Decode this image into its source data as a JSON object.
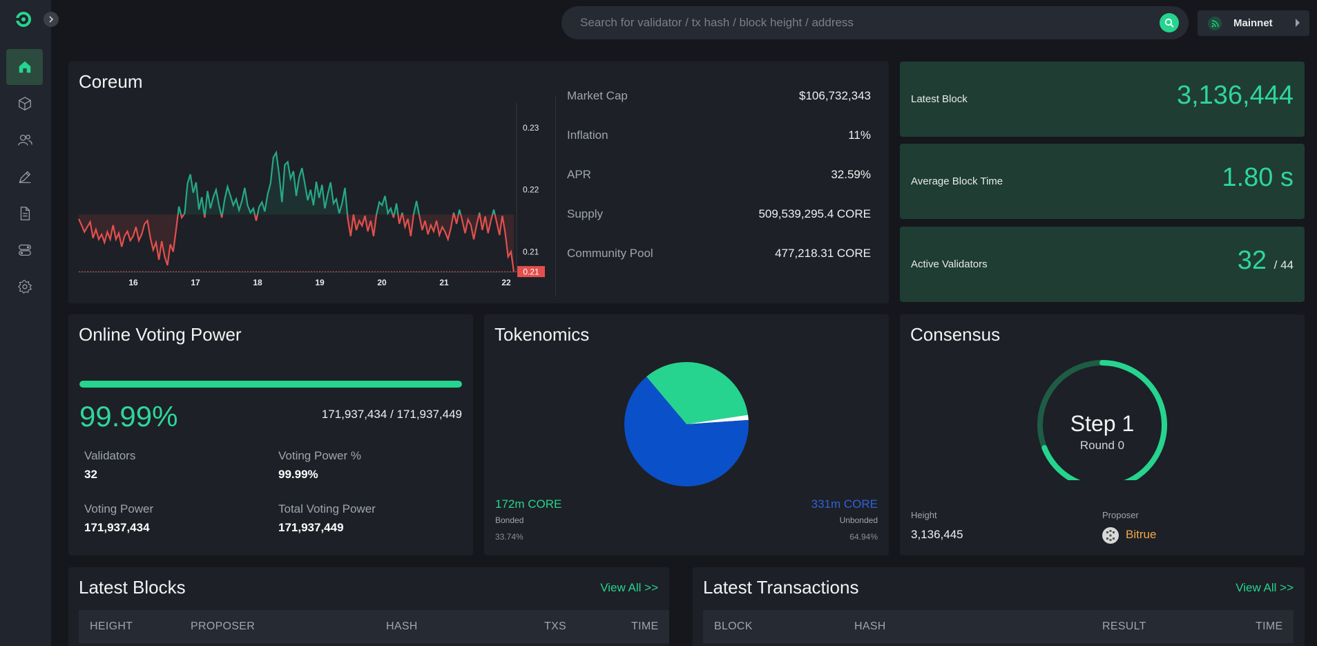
{
  "search": {
    "placeholder": "Search for validator / tx hash / block height / address"
  },
  "network": {
    "label": "Mainnet"
  },
  "sidebar": {
    "items": [
      {
        "icon": "home-icon",
        "active": true
      },
      {
        "icon": "cube-icon",
        "active": false
      },
      {
        "icon": "users-icon",
        "active": false
      },
      {
        "icon": "pen-icon",
        "active": false
      },
      {
        "icon": "document-icon",
        "active": false
      },
      {
        "icon": "toggle-icon",
        "active": false
      },
      {
        "icon": "gear-icon",
        "active": false
      }
    ]
  },
  "coreum": {
    "title": "Coreum",
    "stats": [
      {
        "label": "Market Cap",
        "value": "$106,732,343"
      },
      {
        "label": "Inflation",
        "value": "11%"
      },
      {
        "label": "APR",
        "value": "32.59%"
      },
      {
        "label": "Supply",
        "value": "509,539,295.4 CORE"
      },
      {
        "label": "Community Pool",
        "value": "477,218.31 CORE"
      }
    ]
  },
  "chart_data": {
    "type": "line",
    "x_tick_labels": [
      "16",
      "17",
      "18",
      "19",
      "20",
      "21",
      "22"
    ],
    "y_tick_labels": [
      "0.23",
      "0.22",
      "0.21"
    ],
    "ylim": [
      0.2067,
      0.234
    ],
    "baseline": 0.216,
    "current_price_label": "0.21",
    "current_price": 0.2068,
    "colors": {
      "up": "#26a987",
      "down": "#e2504d"
    },
    "values": [
      0.2153,
      0.2143,
      0.2132,
      0.214,
      0.2148,
      0.2122,
      0.2136,
      0.212,
      0.2128,
      0.2115,
      0.2132,
      0.212,
      0.2143,
      0.212,
      0.213,
      0.2108,
      0.2125,
      0.2133,
      0.2118,
      0.2125,
      0.214,
      0.2118,
      0.2128,
      0.2145,
      0.215,
      0.2123,
      0.2103,
      0.2115,
      0.2087,
      0.2117,
      0.2093,
      0.2078,
      0.2112,
      0.21,
      0.2135,
      0.2173,
      0.2155,
      0.2162,
      0.221,
      0.2225,
      0.2195,
      0.2212,
      0.2168,
      0.2188,
      0.2155,
      0.2198,
      0.217,
      0.2188,
      0.22,
      0.2175,
      0.2155,
      0.2185,
      0.2205,
      0.219,
      0.2175,
      0.2185,
      0.2167,
      0.2182,
      0.2203,
      0.2175,
      0.2163,
      0.217,
      0.215,
      0.2172,
      0.218,
      0.2165,
      0.2193,
      0.221,
      0.2252,
      0.226,
      0.2225,
      0.218,
      0.224,
      0.2245,
      0.2218,
      0.223,
      0.219,
      0.222,
      0.2235,
      0.221,
      0.2183,
      0.22,
      0.2175,
      0.2213,
      0.2187,
      0.2208,
      0.217,
      0.2193,
      0.2212,
      0.2178,
      0.2185,
      0.2162,
      0.2178,
      0.2203,
      0.2153,
      0.2125,
      0.216,
      0.2135,
      0.215,
      0.2142,
      0.2158,
      0.2133,
      0.215,
      0.2125,
      0.216,
      0.218,
      0.2175,
      0.219,
      0.2162,
      0.217,
      0.2155,
      0.2178,
      0.2145,
      0.2163,
      0.214,
      0.2153,
      0.2125,
      0.216,
      0.2182,
      0.2158,
      0.2135,
      0.215,
      0.2128,
      0.2143,
      0.2133,
      0.215,
      0.2127,
      0.214,
      0.2132,
      0.212,
      0.2138,
      0.2163,
      0.2145,
      0.2168,
      0.215,
      0.213,
      0.2152,
      0.2143,
      0.212,
      0.2143,
      0.2163,
      0.2135,
      0.2157,
      0.213,
      0.215,
      0.2168,
      0.2148,
      0.2127,
      0.2158,
      0.213,
      0.2092,
      0.21,
      0.2068
    ]
  },
  "latest_block": {
    "label": "Latest Block",
    "value": "3,136,444"
  },
  "avg_block_time": {
    "label": "Average Block Time",
    "value": "1.80 s"
  },
  "active_validators": {
    "label": "Active Validators",
    "value": "32",
    "total": "/ 44"
  },
  "voting_power": {
    "title": "Online Voting Power",
    "percent": "99.99%",
    "progress_fraction": 0.9999,
    "ratio": "171,937,434 / 171,937,449",
    "items": [
      {
        "label": "Validators",
        "value": "32"
      },
      {
        "label": "Voting Power %",
        "value": "99.99%"
      },
      {
        "label": "Voting Power",
        "value": "171,937,434"
      },
      {
        "label": "Total Voting Power",
        "value": "171,937,449"
      }
    ]
  },
  "tokenomics": {
    "title": "Tokenomics",
    "pie": [
      {
        "name": "Bonded",
        "fraction": 0.3374,
        "color": "#26d48f"
      },
      {
        "name": "Unbonded",
        "fraction": 0.6494,
        "color": "#0a50c8"
      },
      {
        "name": "Other",
        "fraction": 0.0132,
        "color": "#ffffff"
      }
    ],
    "bonded": {
      "amount": "172m CORE",
      "label": "Bonded",
      "percent": "33.74%"
    },
    "unbonded": {
      "amount": "331m CORE",
      "label": "Unbonded",
      "percent": "64.94%"
    }
  },
  "consensus": {
    "title": "Consensus",
    "step": "Step 1",
    "round": "Round 0",
    "progress_fraction": 0.69,
    "height_label": "Height",
    "height": "3,136,445",
    "proposer_label": "Proposer",
    "proposer": "Bitrue"
  },
  "latest_blocks": {
    "title": "Latest Blocks",
    "view_all": "View All >>",
    "columns": [
      "HEIGHT",
      "PROPOSER",
      "HASH",
      "TXS",
      "TIME"
    ]
  },
  "latest_transactions": {
    "title": "Latest Transactions",
    "view_all": "View All >>",
    "columns": [
      "BLOCK",
      "HASH",
      "RESULT",
      "TIME"
    ]
  }
}
